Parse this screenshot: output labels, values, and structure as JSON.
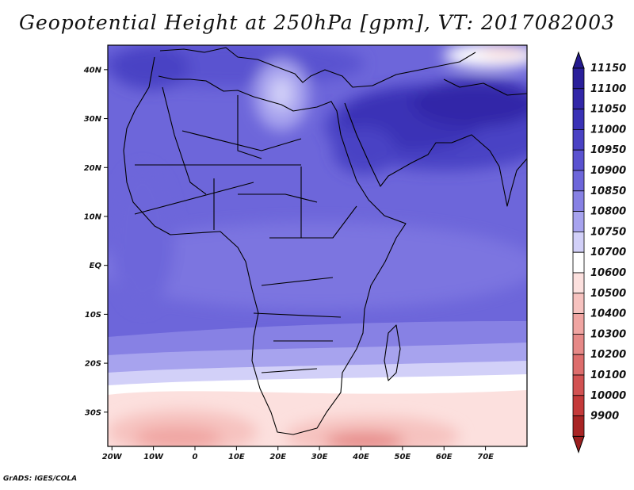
{
  "title": "Geopotential Height at 250hPa [gpm], VT: 2017082003",
  "footer": "GrADS: IGES/COLA",
  "map": {
    "projection": "latlon",
    "lat_range": [
      -37,
      45
    ],
    "lon_range": [
      -21,
      80
    ],
    "lat_ticks": [
      {
        "lat": 40,
        "label": "40N"
      },
      {
        "lat": 30,
        "label": "30N"
      },
      {
        "lat": 20,
        "label": "20N"
      },
      {
        "lat": 10,
        "label": "10N"
      },
      {
        "lat": 0,
        "label": "EQ"
      },
      {
        "lat": -10,
        "label": "10S"
      },
      {
        "lat": -20,
        "label": "20S"
      },
      {
        "lat": -30,
        "label": "30S"
      }
    ],
    "lon_ticks": [
      {
        "lon": -20,
        "label": "20W"
      },
      {
        "lon": -10,
        "label": "10W"
      },
      {
        "lon": 0,
        "label": "0"
      },
      {
        "lon": 10,
        "label": "10E"
      },
      {
        "lon": 20,
        "label": "20E"
      },
      {
        "lon": 30,
        "label": "30E"
      },
      {
        "lon": 40,
        "label": "40E"
      },
      {
        "lon": 50,
        "label": "50E"
      },
      {
        "lon": 60,
        "label": "60E"
      },
      {
        "lon": 70,
        "label": "70E"
      }
    ]
  },
  "colorbar": {
    "levels": [
      {
        "label": "11150",
        "color": "#2a1f9a"
      },
      {
        "label": "11100",
        "color": "#3227a8"
      },
      {
        "label": "11050",
        "color": "#3a32b6"
      },
      {
        "label": "11000",
        "color": "#4a42c4"
      },
      {
        "label": "10950",
        "color": "#5a52d0"
      },
      {
        "label": "10900",
        "color": "#6d66da"
      },
      {
        "label": "10850",
        "color": "#8781e4"
      },
      {
        "label": "10800",
        "color": "#a7a3ee"
      },
      {
        "label": "10750",
        "color": "#d2d0f8"
      },
      {
        "label": "10700",
        "color": "#ffffff"
      },
      {
        "label": "10600",
        "color": "#fce0de"
      },
      {
        "label": "10500",
        "color": "#f6c2bf"
      },
      {
        "label": "10400",
        "color": "#f0a5a2"
      },
      {
        "label": "10300",
        "color": "#e68987"
      },
      {
        "label": "10200",
        "color": "#dd6d6c"
      },
      {
        "label": "10100",
        "color": "#d25252"
      },
      {
        "label": "10000",
        "color": "#c43a3a"
      },
      {
        "label": "9900",
        "color": "#a82424"
      }
    ],
    "top_color": "#241a8e",
    "bottom_color": "#9a1e1e"
  }
}
